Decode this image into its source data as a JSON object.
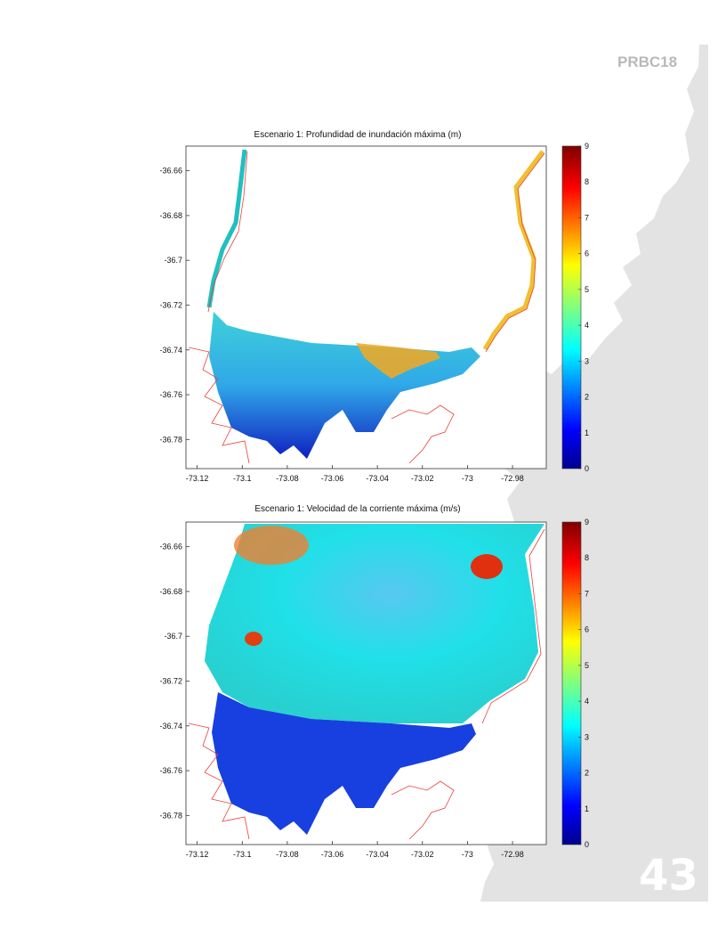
{
  "header": {
    "code": "PRBC18"
  },
  "page_number": "43",
  "colors": {
    "coast_outline": "#e8403a",
    "land_gray": "#e3e3e3",
    "frame": "#333333"
  },
  "colormap": "jet",
  "chart_data": [
    {
      "type": "heatmap",
      "title": "Escenario 1:  Profundidad de inundación máxima  (m)",
      "x_ticks": [
        "-73.12",
        "-73.1",
        "-73.08",
        "-73.06",
        "-73.04",
        "-73.02",
        "-73",
        "-72.98"
      ],
      "y_ticks": [
        "-36.66",
        "-36.68",
        "-36.7",
        "-36.72",
        "-36.74",
        "-36.76",
        "-36.78"
      ],
      "xlim": [
        -73.125,
        -72.965
      ],
      "ylim": [
        -36.793,
        -36.649
      ],
      "colorbar": {
        "min": 0,
        "max": 9,
        "ticks": [
          "9",
          "8",
          "7",
          "6",
          "5",
          "4",
          "3",
          "2",
          "1",
          "0"
        ]
      }
    },
    {
      "type": "heatmap",
      "title": "Escenario 1:  Velocidad de la corriente máxima (m/s)",
      "x_ticks": [
        "-73.12",
        "-73.1",
        "-73.08",
        "-73.06",
        "-73.04",
        "-73.02",
        "-73",
        "-72.98"
      ],
      "y_ticks": [
        "-36.66",
        "-36.68",
        "-36.7",
        "-36.72",
        "-36.74",
        "-36.76",
        "-36.78"
      ],
      "xlim": [
        -73.125,
        -72.965
      ],
      "ylim": [
        -36.793,
        -36.649
      ],
      "colorbar": {
        "min": 0,
        "max": 9,
        "ticks": [
          "9",
          "8",
          "7",
          "6",
          "5",
          "4",
          "3",
          "2",
          "1",
          "0"
        ]
      }
    }
  ]
}
